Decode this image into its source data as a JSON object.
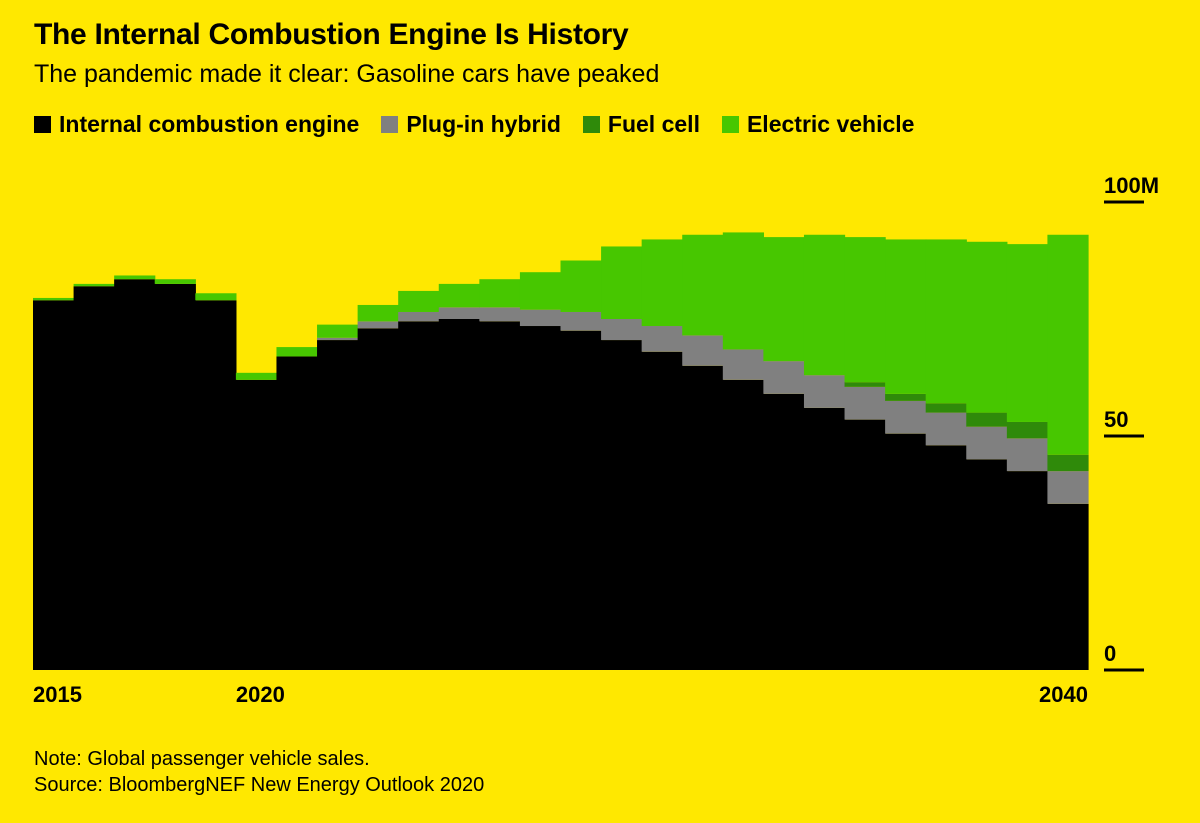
{
  "title": "The Internal Combustion Engine Is History",
  "subtitle": "The pandemic made it clear: Gasoline cars have peaked",
  "legend": [
    {
      "label": "Internal combustion engine",
      "color": "#000000"
    },
    {
      "label": "Plug-in hybrid",
      "color": "#808080"
    },
    {
      "label": "Fuel cell",
      "color": "#2f8a0a"
    },
    {
      "label": "Electric vehicle",
      "color": "#47c700"
    }
  ],
  "note": {
    "line1": "Note: Global passenger vehicle sales.",
    "line2": "Source: BloombergNEF New Energy Outlook 2020"
  },
  "colors": {
    "background": "#ffe800",
    "ice": "#000000",
    "phev": "#808080",
    "fuel_cell": "#2f8a0a",
    "ev": "#47c700"
  },
  "chart_data": {
    "type": "area",
    "stacked": true,
    "step": true,
    "x": [
      2015,
      2016,
      2017,
      2018,
      2019,
      2020,
      2021,
      2022,
      2023,
      2024,
      2025,
      2026,
      2027,
      2028,
      2029,
      2030,
      2031,
      2032,
      2033,
      2034,
      2035,
      2036,
      2037,
      2038,
      2039,
      2040
    ],
    "series": [
      {
        "name": "Internal combustion engine",
        "values": [
          79.0,
          82.0,
          83.5,
          82.5,
          79.0,
          62.0,
          67.0,
          70.5,
          73.0,
          74.5,
          75.0,
          74.5,
          73.5,
          72.5,
          70.5,
          68.0,
          65.0,
          62.0,
          59.0,
          56.0,
          53.5,
          50.5,
          48.0,
          45.0,
          42.5,
          35.5
        ]
      },
      {
        "name": "Plug-in hybrid",
        "values": [
          0.0,
          0.0,
          0.0,
          0.0,
          0.0,
          0.0,
          0.0,
          0.5,
          1.5,
          2.0,
          2.5,
          3.0,
          3.5,
          4.0,
          4.5,
          5.5,
          6.5,
          6.5,
          7.0,
          7.0,
          7.0,
          7.0,
          7.0,
          7.0,
          7.0,
          7.0
        ]
      },
      {
        "name": "Fuel cell",
        "values": [
          0.0,
          0.0,
          0.0,
          0.0,
          0.0,
          0.0,
          0.0,
          0.0,
          0.0,
          0.0,
          0.0,
          0.0,
          0.0,
          0.0,
          0.0,
          0.0,
          0.0,
          0.0,
          0.0,
          0.0,
          1.0,
          1.5,
          2.0,
          3.0,
          3.5,
          3.5
        ]
      },
      {
        "name": "Electric vehicle",
        "values": [
          0.5,
          0.5,
          0.8,
          1.0,
          1.5,
          1.5,
          2.0,
          2.8,
          3.5,
          4.5,
          5.0,
          6.0,
          8.0,
          11.0,
          15.5,
          18.5,
          21.5,
          25.0,
          26.5,
          30.0,
          31.0,
          33.0,
          35.0,
          36.5,
          38.0,
          47.0
        ]
      }
    ],
    "ylim": [
      0,
      100
    ],
    "y_ticks": [
      {
        "value": 0,
        "label": "0"
      },
      {
        "value": 50,
        "label": "50"
      },
      {
        "value": 100,
        "label": "100M"
      }
    ],
    "x_tick_labels": [
      {
        "value": 2015,
        "label": "2015"
      },
      {
        "value": 2020,
        "label": "2020"
      },
      {
        "value": 2040,
        "label": "2040"
      }
    ],
    "y_axis_side": "right",
    "grid": false
  }
}
